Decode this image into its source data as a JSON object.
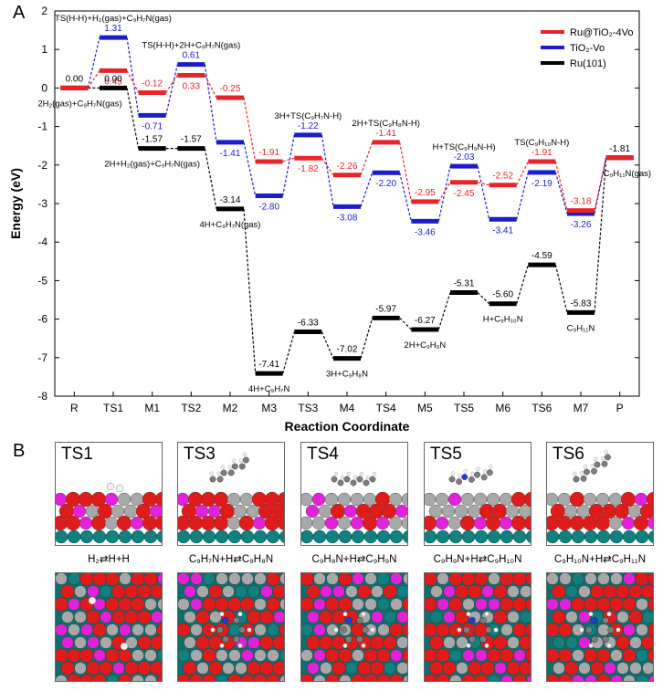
{
  "panel_labels": {
    "a": "A",
    "b": "B"
  },
  "chart_data": {
    "type": "line",
    "xlabel": "Reaction Coordinate",
    "ylabel": "Energy (eV)",
    "ylim": [
      -8,
      2
    ],
    "yticks": [
      -8,
      -7,
      -6,
      -5,
      -4,
      -3,
      -2,
      -1,
      0,
      1,
      2
    ],
    "categories": [
      "R",
      "TS1",
      "M1",
      "TS2",
      "M2",
      "M3",
      "TS3",
      "M4",
      "TS4",
      "M5",
      "TS5",
      "M6",
      "TS6",
      "M7",
      "P"
    ],
    "legend_position": "top-right",
    "series": [
      {
        "name": "Ru@TiO₂-4Vo",
        "color": "#e8242a",
        "values": [
          0.0,
          0.45,
          -0.12,
          0.33,
          -0.25,
          -1.91,
          -1.82,
          -2.26,
          -1.41,
          -2.95,
          -2.45,
          -2.52,
          -1.91,
          -3.18,
          -1.81
        ],
        "labels": [
          null,
          "0.45",
          "-0.12",
          "0.33",
          "-0.25",
          "-1.91",
          "-1.82",
          "-2.26",
          "-1.41",
          "-2.95",
          "-2.45",
          "-2.52",
          "-1.91",
          "-3.18",
          null
        ]
      },
      {
        "name": "TiO₂-Vo",
        "color": "#1c1cc8",
        "values": [
          0.0,
          1.31,
          -0.71,
          0.61,
          -1.41,
          -2.8,
          -1.22,
          -3.08,
          -2.2,
          -3.46,
          -2.03,
          -3.41,
          -2.19,
          -3.26,
          -1.81
        ],
        "labels": [
          null,
          "1.31",
          "-0.71",
          "0.61",
          "-1.41",
          "-2.80",
          "-1.22",
          "-3.08",
          "-2.20",
          "-3.46",
          "-2.03",
          "-3.41",
          "-2.19",
          "-3.26",
          null
        ]
      },
      {
        "name": "Ru(101)",
        "color": "#000000",
        "values": [
          0.0,
          0.0,
          -1.57,
          -1.57,
          -3.14,
          -7.41,
          -6.33,
          -7.02,
          -5.97,
          -6.27,
          -5.31,
          -5.6,
          -4.59,
          -5.83,
          -1.81
        ],
        "labels": [
          "0.00",
          "0.00",
          "-1.57",
          "-1.57",
          "-3.14",
          "-7.41",
          "-6.33",
          "-7.02",
          "-5.97",
          "-6.27",
          "-5.31",
          "-5.60",
          "-4.59",
          "-5.83",
          "-1.81"
        ]
      }
    ],
    "annotations": [
      {
        "text": "TS(H-H)+H₂(gas)+C₉H₇N(gas)",
        "at": "TS1",
        "e": 1.31,
        "place": "above"
      },
      {
        "text": "2H₂(gas)+C₉H₇N(gas)",
        "at": "R",
        "e": 0.0,
        "place": "below"
      },
      {
        "text": "TS(H-H)+2H+C₉H₇N(gas)",
        "at": "TS2",
        "e": 0.61,
        "place": "above"
      },
      {
        "text": "2H+H₂(gas)+C₉H₇N(gas)",
        "at": "M1",
        "e": -1.57,
        "place": "below"
      },
      {
        "text": "4H+C₉H₇N(gas)",
        "at": "M2",
        "e": -3.14,
        "place": "below"
      },
      {
        "text": "3H+TS(C₉H₇N-H)",
        "at": "TS3",
        "e": -1.22,
        "place": "above"
      },
      {
        "text": "2H+TS(C₉H₈N-H)",
        "at": "TS4",
        "e": -1.41,
        "place": "above"
      },
      {
        "text": "H+TS(C₉H₉N-H)",
        "at": "TS5",
        "e": -2.03,
        "place": "above"
      },
      {
        "text": "TS(C₉H₁₀N-H)",
        "at": "TS6",
        "e": -1.91,
        "place": "above"
      },
      {
        "text": "C₉H₁₁N(gas)",
        "at": "P",
        "e": -1.81,
        "place": "below"
      },
      {
        "text": "4H+C₉H₇N",
        "at": "M3",
        "e": -7.41,
        "place": "below"
      },
      {
        "text": "3H+C₉H₈N",
        "at": "M4",
        "e": -7.02,
        "place": "below"
      },
      {
        "text": "2H+C₉H₉N",
        "at": "M5",
        "e": -6.27,
        "place": "below"
      },
      {
        "text": "H+C₉H₁₀N",
        "at": "M6",
        "e": -5.6,
        "place": "below"
      },
      {
        "text": "C₉H₁₁N",
        "at": "M7",
        "e": -5.83,
        "place": "below"
      }
    ]
  },
  "structures": [
    {
      "label": "TS1",
      "reaction": "H₂⇄H+H"
    },
    {
      "label": "TS3",
      "reaction": "C₉H₇N+H⇄C₉H₈N"
    },
    {
      "label": "TS4",
      "reaction": "C₉H₈N+H⇄C₉H₉N"
    },
    {
      "label": "TS5",
      "reaction": "C₉H₉N+H⇄C₉H₁₀N"
    },
    {
      "label": "TS6",
      "reaction": "C₉H₁₀N+H⇄C₉H₁₁N"
    }
  ],
  "atom_colors": {
    "O": "#e01b1b",
    "Ti": "#a8a8a8",
    "Ru": "#12807f",
    "Dopant": "#e222d8",
    "H": "#f2f2f2",
    "N": "#1f3fd0",
    "C": "#7d7d7d"
  }
}
